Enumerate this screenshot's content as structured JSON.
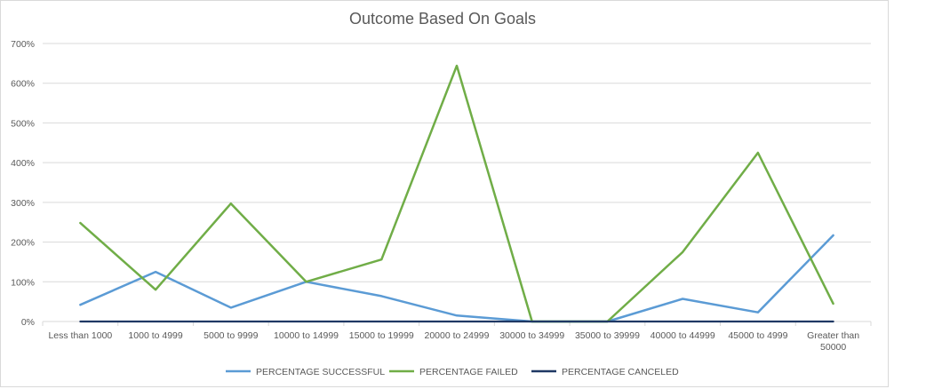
{
  "chart_data": {
    "type": "line",
    "title": "Outcome Based On Goals",
    "xlabel": "",
    "ylabel": "",
    "ylim": [
      0,
      7
    ],
    "y_ticks": [
      0,
      1,
      2,
      3,
      4,
      5,
      6,
      7
    ],
    "y_tick_labels": [
      "0%",
      "100%",
      "200%",
      "300%",
      "400%",
      "500%",
      "600%",
      "700%"
    ],
    "y_format": "percent",
    "grid": true,
    "legend_position": "bottom",
    "categories": [
      [
        "Less than 1000"
      ],
      [
        "1000 to 4999"
      ],
      [
        "5000 to 9999"
      ],
      [
        "10000 to 14999"
      ],
      [
        "15000 to 19999"
      ],
      [
        "20000 to 24999"
      ],
      [
        "30000 to 34999"
      ],
      [
        "35000 to 39999"
      ],
      [
        "40000 to 44999"
      ],
      [
        "45000 to 4999"
      ],
      [
        "Greater than",
        "50000"
      ]
    ],
    "series": [
      {
        "name": "PERCENTAGE SUCCESSFUL",
        "color": "#5B9BD5",
        "values": [
          0.42,
          1.25,
          0.35,
          1.0,
          0.64,
          0.15,
          0.0,
          0.0,
          0.57,
          0.23,
          2.17
        ]
      },
      {
        "name": "PERCENTAGE FAILED",
        "color": "#70AD47",
        "values": [
          2.48,
          0.8,
          2.97,
          1.0,
          1.56,
          6.44,
          0.0,
          0.0,
          1.75,
          4.25,
          0.45
        ]
      },
      {
        "name": "PERCENTAGE CANCELED",
        "color": "#1F3864",
        "values": [
          0,
          0,
          0,
          0,
          0,
          0,
          0,
          0,
          0,
          0,
          0
        ]
      }
    ]
  }
}
